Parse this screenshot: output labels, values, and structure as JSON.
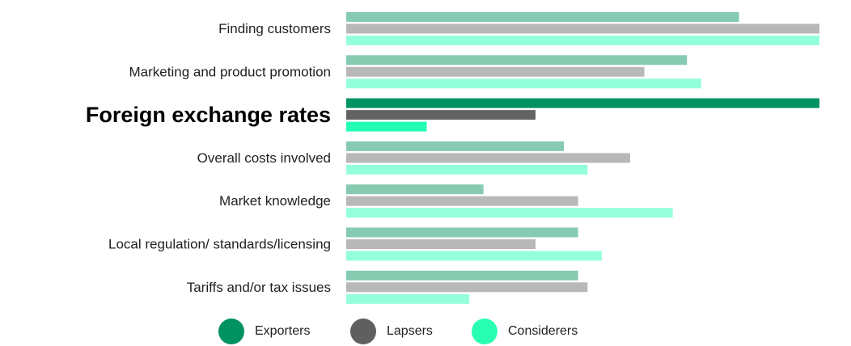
{
  "chart_data": {
    "type": "bar",
    "orientation": "horizontal",
    "title": "",
    "xlabel": "",
    "ylabel": "",
    "xlim": [
      0,
      100
    ],
    "highlight_category": "Foreign exchange rates",
    "categories": [
      "Finding customers",
      "Marketing and product promotion",
      "Foreign exchange rates",
      "Overall costs involved",
      "Market knowledge",
      "Local regulation/ standards/licensing",
      "Tariffs and/or tax issues"
    ],
    "series": [
      {
        "name": "Exporters",
        "color": "#86cbb1",
        "highlight_color": "#009261",
        "values": [
          83,
          72,
          100,
          46,
          29,
          49,
          49
        ]
      },
      {
        "name": "Lapsers",
        "color": "#b8b8b8",
        "highlight_color": "#636363",
        "values": [
          100,
          63,
          40,
          60,
          49,
          40,
          51
        ]
      },
      {
        "name": "Considerers",
        "color": "#94ffdb",
        "highlight_color": "#22ffb2",
        "values": [
          100,
          75,
          17,
          51,
          69,
          54,
          26
        ]
      }
    ],
    "legend": {
      "position": "bottom-center",
      "items": [
        {
          "name": "Exporters",
          "color": "#009261"
        },
        {
          "name": "Lapsers",
          "color": "#5f5f5f"
        },
        {
          "name": "Considerers",
          "color": "#28ffb3"
        }
      ]
    }
  }
}
